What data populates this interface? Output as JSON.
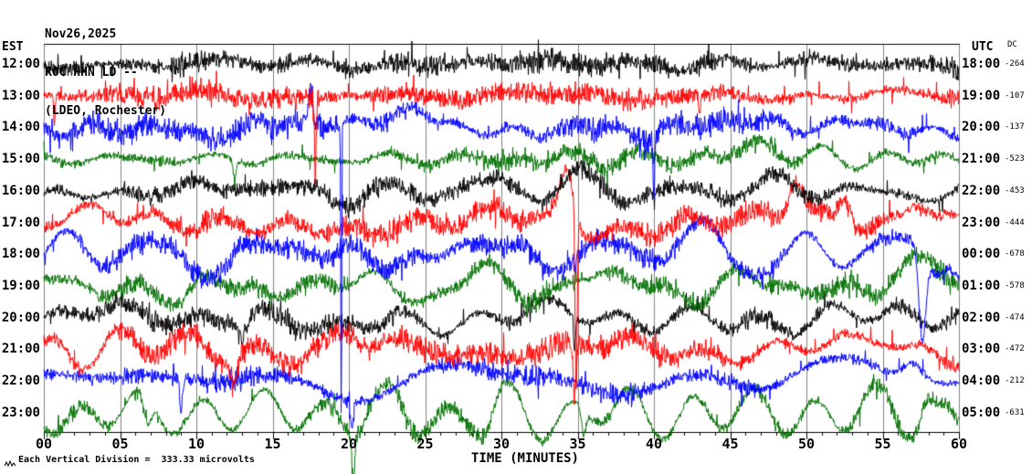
{
  "title": {
    "date": "Nov26,2025",
    "station": "ROC HHN LD --",
    "location": "(LDEO, Rochester)"
  },
  "axes": {
    "left_label": "EST",
    "right_label": "UTC",
    "dc_label": "DC",
    "x_label": "TIME (MINUTES)",
    "x_ticks": [
      "00",
      "05",
      "10",
      "15",
      "20",
      "25",
      "30",
      "35",
      "40",
      "45",
      "50",
      "55",
      "60"
    ],
    "footer": "Each Vertical Division =  333.33 microvolts"
  },
  "colors": {
    "background": "#ffffff",
    "grid": "#808080",
    "border_side": "#808080",
    "axis": "#000000",
    "text": "#000000",
    "traces": {
      "black": "#000000",
      "red": "#ff0000",
      "blue": "#0000ff",
      "green": "#007000"
    }
  },
  "chart_data": {
    "type": "line",
    "subtype": "helicorder-seismogram",
    "x_unit": "minutes",
    "x_range_minutes": [
      0,
      60
    ],
    "minutes_per_line": 60,
    "grid_interval_minutes": 5,
    "vertical_division_microvolts": 333.33,
    "rows": [
      {
        "est": "12:00",
        "utc": "18:00",
        "dc": "-264",
        "color": "black",
        "seed": 11,
        "noise": 9,
        "wander": 3,
        "spike_rate": 0.02,
        "spike_amp": 16,
        "events": []
      },
      {
        "est": "13:00",
        "utc": "19:00",
        "dc": "-107",
        "color": "red",
        "seed": 22,
        "noise": 8,
        "wander": 3,
        "spike_rate": 0.022,
        "spike_amp": 14,
        "events": [
          [
            17.8,
            -95,
            0.05
          ],
          [
            0.7,
            -35,
            0.05
          ],
          [
            43,
            -25,
            0.06
          ]
        ]
      },
      {
        "est": "14:00",
        "utc": "20:00",
        "dc": "-137",
        "color": "blue",
        "seed": 33,
        "noise": 9,
        "wander": 5,
        "spike_rate": 0.022,
        "spike_amp": 15,
        "events": [
          [
            19.5,
            -330,
            0.03
          ],
          [
            17.5,
            40,
            0.12
          ],
          [
            40,
            -70,
            0.05
          ],
          [
            23,
            12,
            1.5
          ]
        ]
      },
      {
        "est": "15:00",
        "utc": "21:00",
        "dc": "-523",
        "color": "green",
        "seed": 44,
        "noise": 7,
        "wander": 6,
        "spike_rate": 0.015,
        "spike_amp": 12,
        "events": [
          [
            47,
            12,
            2
          ],
          [
            12.5,
            -20,
            0.1
          ]
        ]
      },
      {
        "est": "16:00",
        "utc": "22:00",
        "dc": "-453",
        "color": "black",
        "seed": 55,
        "noise": 7,
        "wander": 8,
        "spike_rate": 0.015,
        "spike_amp": 12,
        "events": [
          [
            36,
            10,
            1.5
          ]
        ]
      },
      {
        "est": "17:00",
        "utc": "23:00",
        "dc": "-444",
        "color": "red",
        "seed": 66,
        "noise": 8,
        "wander": 9,
        "spike_rate": 0.02,
        "spike_amp": 13,
        "events": [
          [
            34.3,
            60,
            0.45
          ],
          [
            34.9,
            -195,
            0.07
          ],
          [
            49.3,
            42,
            0.5
          ],
          [
            52.5,
            30,
            0.4
          ],
          [
            57.3,
            25,
            0.8
          ],
          [
            21,
            -15,
            1.2
          ]
        ]
      },
      {
        "est": "18:00",
        "utc": "00:00",
        "dc": "-678",
        "color": "blue",
        "seed": 77,
        "noise": 8,
        "wander": 13,
        "spike_rate": 0.015,
        "spike_amp": 13,
        "events": [
          [
            57.6,
            -95,
            0.22
          ],
          [
            59.3,
            20,
            0.4
          ],
          [
            44,
            18,
            1
          ],
          [
            36.5,
            14,
            0.9
          ]
        ]
      },
      {
        "est": "19:00",
        "utc": "01:00",
        "dc": "-578",
        "color": "green",
        "seed": 88,
        "noise": 8,
        "wander": 11,
        "spike_rate": 0.015,
        "spike_amp": 12,
        "events": [
          [
            58,
            22,
            1.2
          ],
          [
            9,
            -18,
            0.8
          ],
          [
            35,
            12,
            1
          ]
        ]
      },
      {
        "est": "20:00",
        "utc": "02:00",
        "dc": "-474",
        "color": "black",
        "seed": 99,
        "noise": 8,
        "wander": 9,
        "spike_rate": 0.02,
        "spike_amp": 13,
        "events": [
          [
            25.5,
            -14,
            1.5
          ],
          [
            13,
            -22,
            0.25
          ],
          [
            34.8,
            -40,
            0.06
          ]
        ]
      },
      {
        "est": "21:00",
        "utc": "03:00",
        "dc": "-472",
        "color": "red",
        "seed": 110,
        "noise": 9,
        "wander": 9,
        "spike_rate": 0.025,
        "spike_amp": 14,
        "events": [
          [
            34.8,
            -60,
            0.1
          ],
          [
            12.5,
            -28,
            0.18
          ],
          [
            19.8,
            16,
            0.6
          ],
          [
            55,
            12,
            1
          ]
        ]
      },
      {
        "est": "22:00",
        "utc": "04:00",
        "dc": "-212",
        "color": "blue",
        "seed": 121,
        "noise": 8,
        "wander": 11,
        "spike_rate": 0.02,
        "spike_amp": 13,
        "events": [
          [
            9,
            -38,
            0.08
          ],
          [
            20.2,
            -30,
            0.1
          ],
          [
            50,
            14,
            2
          ],
          [
            57,
            18,
            0.6
          ]
        ]
      },
      {
        "est": "23:00",
        "utc": "05:00",
        "dc": "-631",
        "color": "green",
        "seed": 132,
        "noise": 7,
        "wander": 13,
        "spike_rate": 0.015,
        "spike_amp": 12,
        "events": [
          [
            20.3,
            -55,
            0.1
          ],
          [
            6.8,
            -32,
            0.25
          ],
          [
            29,
            -18,
            0.5
          ],
          [
            35.4,
            -28,
            0.15
          ],
          [
            57.8,
            18,
            0.4
          ]
        ]
      }
    ],
    "events_format": "each event = [start_minute, amplitude_px (positive = up), gaussian_width_minutes]"
  }
}
